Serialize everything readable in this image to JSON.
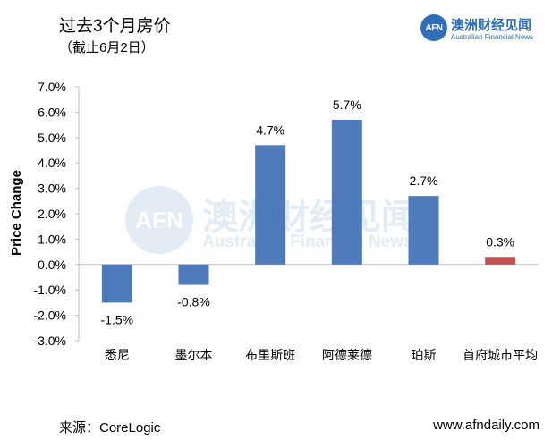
{
  "header": {
    "title": "过去3个月房价",
    "subtitle": "（截止6月2日）"
  },
  "logo": {
    "mark": "AFN",
    "name_cn": "澳洲财经见闻",
    "name_en": "Australian Financial News"
  },
  "watermark": {
    "mark": "AFN",
    "name_cn": "澳洲财经见闻",
    "name_en": "Australian Financial News"
  },
  "footer": {
    "source": "来源：CoreLogic",
    "url": "www.afndaily.com"
  },
  "colors": {
    "bar_primary": "#4f7bbd",
    "bar_highlight": "#c0504d",
    "axis": "#bfbfbf",
    "brand": "#2f6fb5"
  },
  "chart_data": {
    "type": "bar",
    "categories": [
      "悉尼",
      "墨尔本",
      "布里斯班",
      "阿德莱德",
      "珀斯",
      "首府城市平均"
    ],
    "values": [
      -1.5,
      -0.8,
      4.7,
      5.7,
      2.7,
      0.3
    ],
    "data_labels": [
      "-1.5%",
      "-0.8%",
      "4.7%",
      "5.7%",
      "2.7%",
      "0.3%"
    ],
    "highlight_index": 5,
    "ylabel": "Price Change",
    "xlabel": "",
    "ylim": [
      -3.0,
      7.0
    ],
    "y_ticks": [
      "7.0%",
      "6.0%",
      "5.0%",
      "4.0%",
      "3.0%",
      "2.0%",
      "1.0%",
      "0.0%",
      "-1.0%",
      "-2.0%",
      "-3.0%"
    ],
    "y_tick_values": [
      7,
      6,
      5,
      4,
      3,
      2,
      1,
      0,
      -1,
      -2,
      -3
    ],
    "grid": false,
    "legend": "none"
  }
}
